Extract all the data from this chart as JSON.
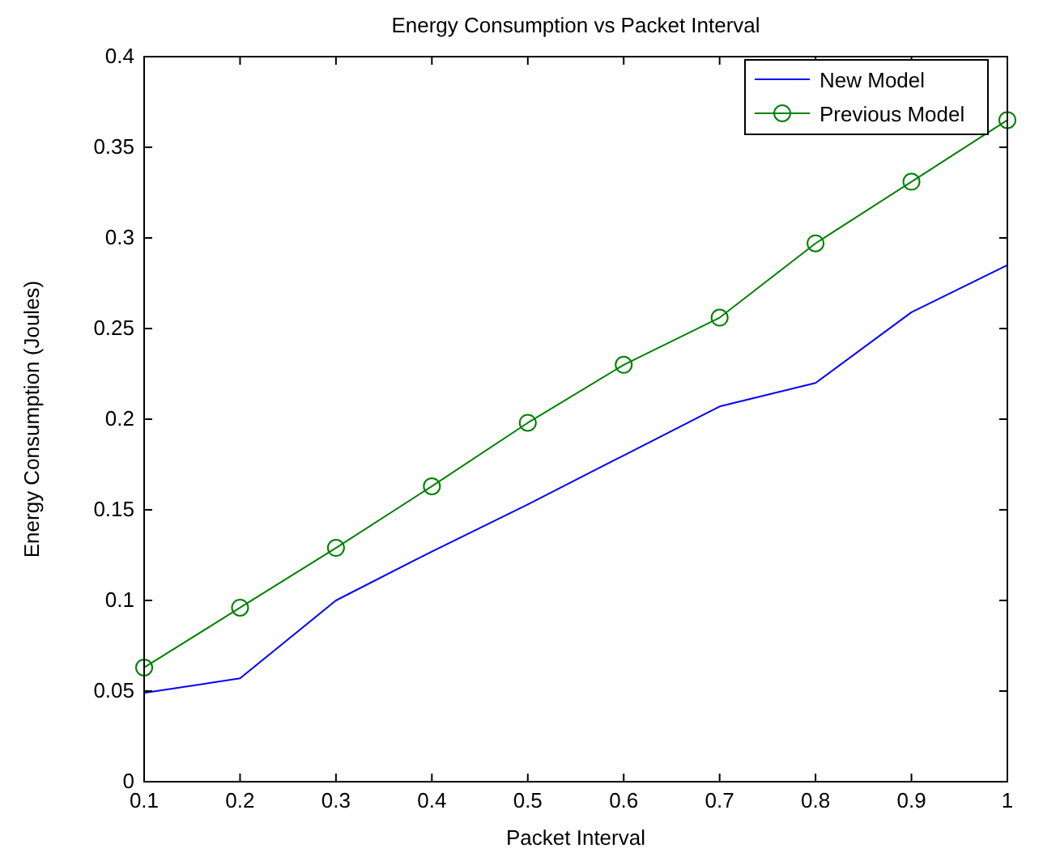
{
  "chart_data": {
    "type": "line",
    "title": "Energy Consumption vs Packet Interval",
    "xlabel": "Packet Interval",
    "ylabel": "Energy Consumption (Joules)",
    "x": [
      0.1,
      0.2,
      0.3,
      0.4,
      0.5,
      0.6,
      0.7,
      0.8,
      0.9,
      1
    ],
    "series": [
      {
        "name": "New Model",
        "color": "#0000ff",
        "marker": "none",
        "values": [
          0.049,
          0.057,
          0.1,
          0.127,
          0.153,
          0.18,
          0.207,
          0.22,
          0.259,
          0.285
        ]
      },
      {
        "name": "Previous Model",
        "color": "#008000",
        "marker": "circle",
        "values": [
          0.063,
          0.096,
          0.129,
          0.163,
          0.198,
          0.23,
          0.256,
          0.297,
          0.331,
          0.365
        ]
      }
    ],
    "xlim": [
      0.1,
      1
    ],
    "xticks": [
      0.1,
      0.2,
      0.3,
      0.4,
      0.5,
      0.6,
      0.7,
      0.8,
      0.9,
      1
    ],
    "ylim": [
      0,
      0.4
    ],
    "yticks": [
      0,
      0.05,
      0.1,
      0.15,
      0.2,
      0.25,
      0.3,
      0.35,
      0.4
    ],
    "grid": false,
    "legend": "top right",
    "line_style": "solid"
  }
}
